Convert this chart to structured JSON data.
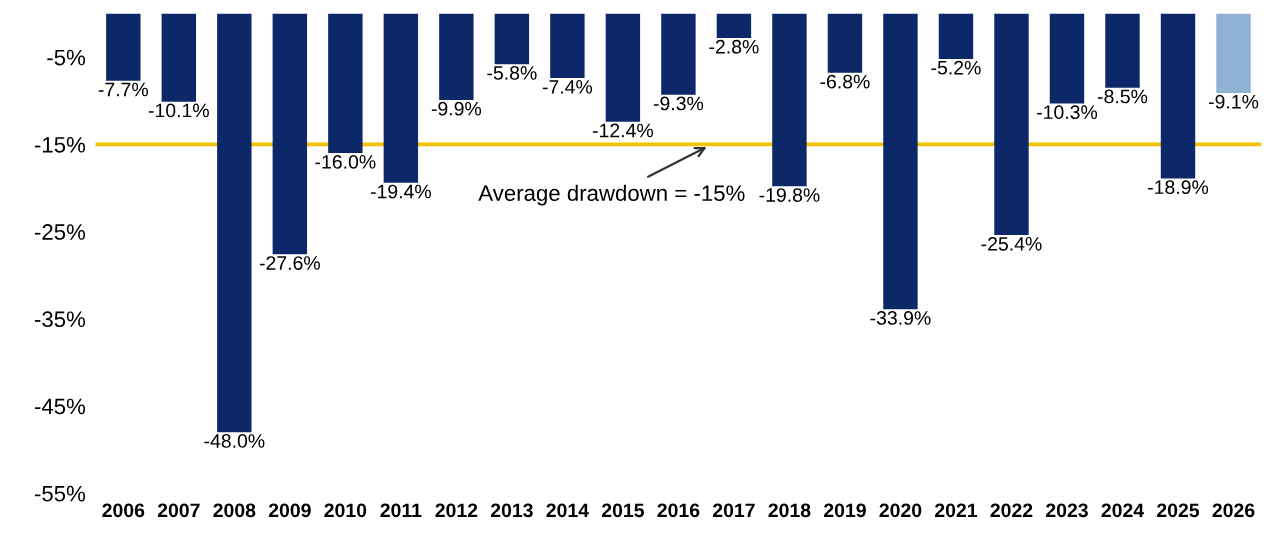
{
  "chart_data": {
    "type": "bar",
    "categories": [
      "2006",
      "2007",
      "2008",
      "2009",
      "2010",
      "2011",
      "2012",
      "2013",
      "2014",
      "2015",
      "2016",
      "2017",
      "2018",
      "2019",
      "2020",
      "2021",
      "2022",
      "2023",
      "2024",
      "2025",
      "2026"
    ],
    "values": [
      -7.7,
      -10.1,
      -48.0,
      -27.6,
      -16.0,
      -19.4,
      -9.9,
      -5.8,
      -7.4,
      -12.4,
      -9.3,
      -2.8,
      -19.8,
      -6.8,
      -33.9,
      -5.2,
      -25.4,
      -10.3,
      -8.5,
      -18.9,
      -9.1
    ],
    "colors": [
      "#0c2869",
      "#0c2869",
      "#0c2869",
      "#0c2869",
      "#0c2869",
      "#0c2869",
      "#0c2869",
      "#0c2869",
      "#0c2869",
      "#0c2869",
      "#0c2869",
      "#0c2869",
      "#0c2869",
      "#0c2869",
      "#0c2869",
      "#0c2869",
      "#0c2869",
      "#0c2869",
      "#0c2869",
      "#0c2869",
      "#8fb1d3"
    ],
    "value_labels": [
      "-7.7%",
      "-10.1%",
      "-48.0%",
      "-27.6%",
      "-16.0%",
      "-19.4%",
      "-9.9%",
      "-5.8%",
      "-7.4%",
      "-12.4%",
      "-9.3%",
      "-2.8%",
      "-19.8%",
      "-6.8%",
      "-33.9%",
      "-5.2%",
      "-25.4%",
      "-10.3%",
      "-8.5%",
      "-18.9%",
      "-9.1%"
    ],
    "ylim": [
      -55,
      0
    ],
    "yticks": [
      {
        "value": -5,
        "label": "-5%"
      },
      {
        "value": -15,
        "label": "-15%"
      },
      {
        "value": -25,
        "label": "-25%"
      },
      {
        "value": -35,
        "label": "-35%"
      },
      {
        "value": -45,
        "label": "-45%"
      },
      {
        "value": -55,
        "label": "-55%"
      }
    ],
    "ref_lines": [
      {
        "axis": "y",
        "value": -15,
        "color": "#f2c200"
      }
    ],
    "annotations": [
      {
        "text": "Average drawdown = -15%",
        "x": "2017",
        "y": -15
      }
    ],
    "grid": false,
    "legend": false
  }
}
